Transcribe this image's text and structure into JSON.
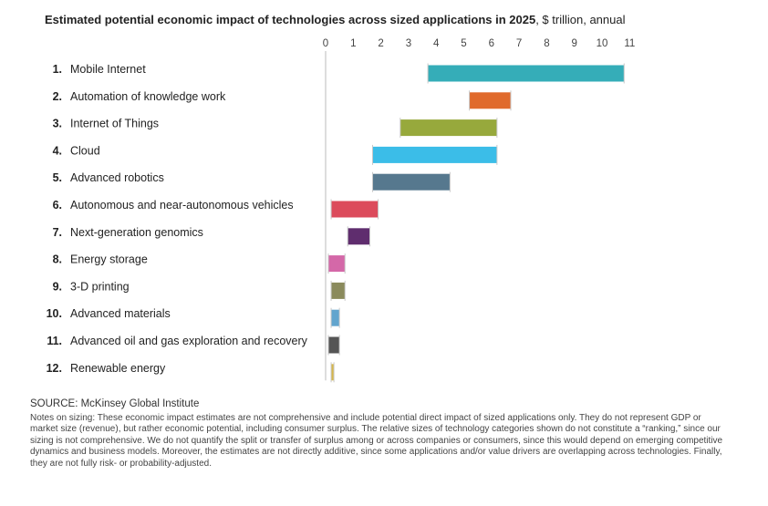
{
  "title": {
    "bold": "Estimated potential economic impact of technologies across sized applications in 2025",
    "rest": ", $ trillion, annual"
  },
  "chart_data": {
    "type": "bar",
    "subtype": "floating-range",
    "title": "Estimated potential economic impact of technologies across sized applications in 2025, $ trillion, annual",
    "xlim": [
      0,
      11
    ],
    "ticks": [
      "0",
      "1",
      "2",
      "3",
      "4",
      "5",
      "6",
      "7",
      "8",
      "9",
      "10",
      "11"
    ],
    "grid": false,
    "categories": [
      {
        "rank": "1.",
        "label": "Mobile Internet",
        "low": 3.7,
        "high": 10.8,
        "color": "#35adb8"
      },
      {
        "rank": "2.",
        "label": "Automation of knowledge work",
        "low": 5.2,
        "high": 6.7,
        "color": "#e06a2c"
      },
      {
        "rank": "3.",
        "label": "Internet of Things",
        "low": 2.7,
        "high": 6.2,
        "color": "#97a93c"
      },
      {
        "rank": "4.",
        "label": "Cloud",
        "low": 1.7,
        "high": 6.2,
        "color": "#3bbde8"
      },
      {
        "rank": "5.",
        "label": "Advanced robotics",
        "low": 1.7,
        "high": 4.5,
        "color": "#56788e"
      },
      {
        "rank": "6.",
        "label": "Autonomous and near-autonomous vehicles",
        "low": 0.2,
        "high": 1.9,
        "color": "#dc4b5c"
      },
      {
        "rank": "7.",
        "label": "Next-generation genomics",
        "low": 0.8,
        "high": 1.6,
        "color": "#5f2d6e"
      },
      {
        "rank": "8.",
        "label": "Energy storage",
        "low": 0.1,
        "high": 0.7,
        "color": "#d468a8"
      },
      {
        "rank": "9.",
        "label": "3-D printing",
        "low": 0.2,
        "high": 0.7,
        "color": "#8a8a5c"
      },
      {
        "rank": "10.",
        "label": "Advanced materials",
        "low": 0.2,
        "high": 0.5,
        "color": "#62a5ce"
      },
      {
        "rank": "11.",
        "label": "Advanced oil and gas exploration and recovery",
        "low": 0.1,
        "high": 0.5,
        "color": "#555555"
      },
      {
        "rank": "12.",
        "label": "Renewable energy",
        "low": 0.2,
        "high": 0.3,
        "color": "#d6b64a"
      }
    ]
  },
  "source": "SOURCE: McKinsey Global Institute",
  "notes": "Notes on sizing: These economic impact estimates are not comprehensive and include potential direct impact of sized applications only. They do not represent GDP or market size (revenue), but rather economic potential, including consumer surplus. The relative sizes of technology categories shown do not constitute a “ranking,” since our sizing is not comprehensive. We do not quantify the split or transfer of surplus among or across companies or consumers, since this would depend on emerging competitive dynamics and business models. Moreover, the estimates are not directly additive, since some applications and/or value drivers are overlapping across technologies. Finally, they are not fully risk- or probability-adjusted."
}
